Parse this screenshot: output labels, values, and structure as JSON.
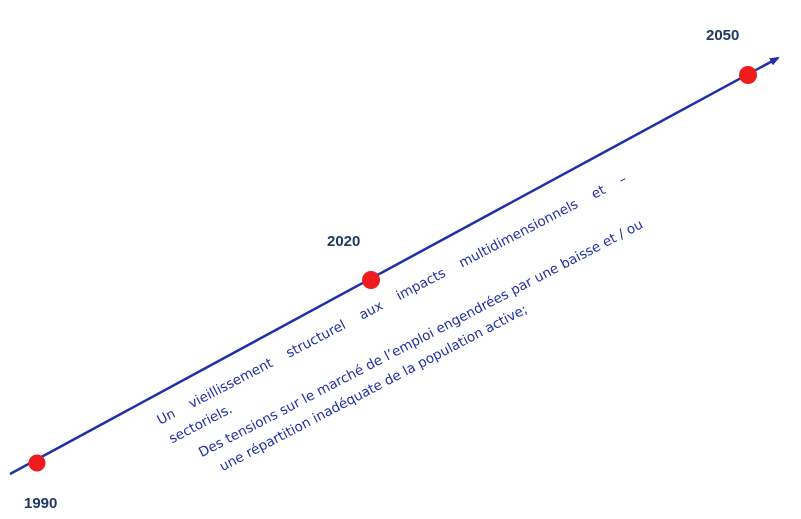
{
  "timeline": {
    "line_color": "#1f2fa8",
    "marker_color": "#ee1c1c",
    "markers": [
      {
        "label": "1990"
      },
      {
        "label": "2020"
      },
      {
        "label": "2050"
      }
    ]
  },
  "notes": {
    "line1": "Un    vieillissement    structurel    aux    impacts    multidimensionnels    et    –",
    "line2": "sectoriels.",
    "line3": "Des tensions sur le marché de l’emploi engendrées par une baisse et / ou",
    "line4": "une répartition inadéquate de la population active;"
  }
}
